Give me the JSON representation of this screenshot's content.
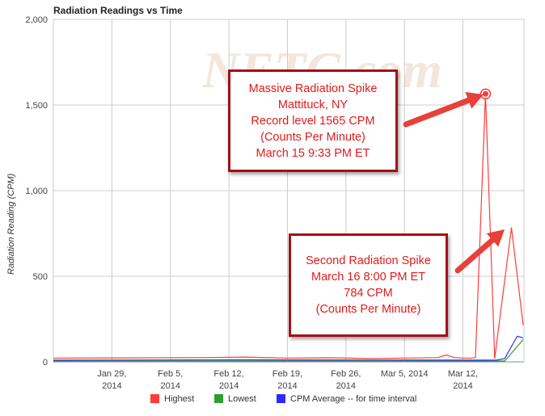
{
  "chart_data": {
    "type": "line",
    "title": "Radiation Readings vs Time",
    "xlabel": "",
    "ylabel": "Radiation Reading (CPM)",
    "ylim": [
      0,
      2000
    ],
    "y_ticks": [
      "0",
      "500",
      "1,000",
      "1,500",
      "2,000"
    ],
    "x_ticks": [
      {
        "line1": "Jan 29,",
        "line2": "2014"
      },
      {
        "line1": "Feb 5,",
        "line2": "2014"
      },
      {
        "line1": "Feb 12,",
        "line2": "2014"
      },
      {
        "line1": "Feb 19,",
        "line2": "2014"
      },
      {
        "line1": "Feb 26,",
        "line2": "2014"
      },
      {
        "line1": "Mar 5, 2014",
        "line2": ""
      },
      {
        "line1": "Mar 12,",
        "line2": "2014"
      }
    ],
    "x_tick_days": [
      29,
      36,
      43,
      50,
      57,
      64,
      71
    ],
    "x_range_days": [
      22,
      78.3
    ],
    "grid": true,
    "legend_position": "bottom",
    "series": [
      {
        "name": "Highest",
        "color": "#ff3b3b",
        "points": [
          [
            22,
            22
          ],
          [
            40,
            25
          ],
          [
            45,
            28
          ],
          [
            50,
            22
          ],
          [
            55,
            24
          ],
          [
            60,
            20
          ],
          [
            64,
            22
          ],
          [
            68,
            25
          ],
          [
            69,
            40
          ],
          [
            70,
            25
          ],
          [
            71,
            22
          ],
          [
            72,
            22
          ],
          [
            72.5,
            25
          ],
          [
            73.7,
            1565
          ],
          [
            74.8,
            20
          ],
          [
            76.8,
            784
          ],
          [
            78.2,
            215
          ]
        ]
      },
      {
        "name": "Lowest",
        "color": "#2ca02c",
        "points": [
          [
            22,
            5
          ],
          [
            75,
            5
          ],
          [
            76,
            5
          ],
          [
            78.2,
            130
          ]
        ]
      },
      {
        "name": "CPM Average -- for time interval",
        "color": "#2b2bff",
        "points": [
          [
            22,
            10
          ],
          [
            45,
            12
          ],
          [
            60,
            11
          ],
          [
            74.5,
            10
          ],
          [
            75,
            10
          ],
          [
            76,
            20
          ],
          [
            77.5,
            150
          ],
          [
            78.2,
            140
          ]
        ]
      }
    ],
    "highlight_point": {
      "series": "Highest",
      "x": 73.7,
      "y": 1565
    }
  },
  "watermark": "NETC.com",
  "annotations": {
    "spike1": [
      "Massive Radiation Spike",
      "Mattituck, NY",
      "Record level 1565 CPM",
      "(Counts Per Minute)",
      "March 15  9:33 PM ET"
    ],
    "spike2": [
      "Second Radiation Spike",
      "March 16  8:00 PM ET",
      "784 CPM",
      "(Counts Per Minute)"
    ]
  },
  "arrow_color": "#e8403a"
}
